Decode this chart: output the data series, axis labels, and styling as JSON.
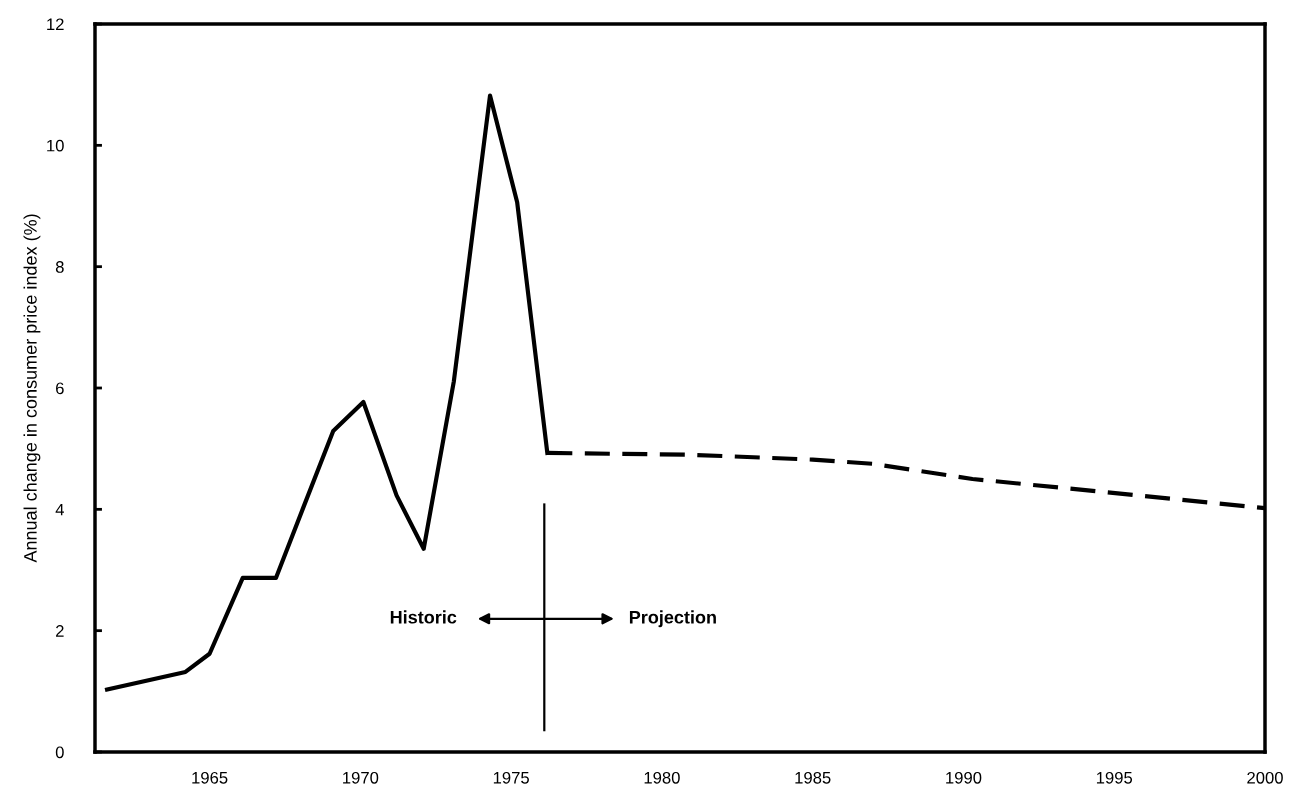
{
  "chart_data": {
    "type": "line",
    "ylabel": "Annual change in consumer price index (%)",
    "xlim": [
      1961.2,
      2000
    ],
    "xticks": [
      1965,
      1970,
      1975,
      1980,
      1985,
      1990,
      1995,
      2000
    ],
    "ylim": [
      0,
      12
    ],
    "yticks": [
      0,
      2,
      4,
      6,
      8,
      10,
      12
    ],
    "grid": false,
    "legend": false,
    "marker": "none",
    "series": [
      {
        "color": "#000000",
        "line_style": "solid",
        "x": [
          1961.6,
          1964.2,
          1965.0,
          1966.1,
          1967.2,
          1968.1,
          1969.1,
          1970.1,
          1971.2,
          1972.1,
          1973.1,
          1974.3,
          1975.2,
          1976.2
        ],
        "values": [
          1.03,
          1.32,
          1.62,
          2.87,
          2.87,
          4.02,
          5.29,
          5.77,
          4.23,
          3.35,
          6.11,
          10.82,
          9.06,
          4.93
        ]
      },
      {
        "color": "#000000",
        "line_style": "dashed",
        "x": [
          1976.2,
          1980.9,
          1985.0,
          1987.0,
          1990.3,
          1994.6,
          2000.0
        ],
        "values": [
          4.93,
          4.9,
          4.82,
          4.75,
          4.5,
          4.29,
          4.02
        ]
      }
    ],
    "ref_lines": [
      {
        "axis": "x",
        "value": 1976.1,
        "color": "#000000"
      }
    ],
    "annotations": [
      "Historic",
      "Projection"
    ]
  }
}
